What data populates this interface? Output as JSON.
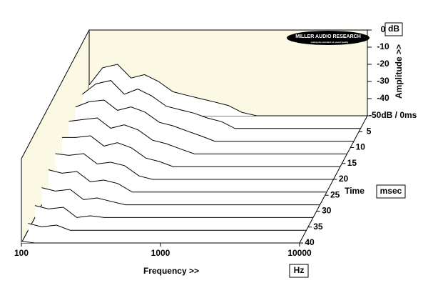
{
  "chart_data": {
    "type": "waterfall",
    "logo": "MILLER AUDIO RESEARCH",
    "logo_tagline": "setting the standard of sound quality",
    "x_label": "Frequency >>",
    "x_unit": "Hz",
    "y_label": "Amplitude >>",
    "y_unit": "dB",
    "z_label": "Time",
    "z_unit": "msec",
    "x_log": true,
    "xlim": [
      100,
      10000
    ],
    "xticks": [
      100,
      1000,
      10000
    ],
    "ylim": [
      -50,
      0
    ],
    "yticks": [
      0,
      -10,
      -20,
      -30,
      -40,
      {
        "value": -50,
        "label": "-50dB / 0ms"
      }
    ],
    "zlim": [
      0,
      40
    ],
    "zticks": [
      5,
      10,
      15,
      20,
      25,
      30,
      35,
      40
    ],
    "color": "#000000",
    "frequencies": [
      100,
      125,
      160,
      200,
      250,
      315,
      400,
      500,
      630,
      800,
      1000,
      1250,
      1600,
      10000
    ],
    "times": [
      0,
      4,
      8,
      12,
      16,
      20,
      24,
      28,
      32,
      36,
      40
    ],
    "values": [
      [
        -32,
        -22,
        -20,
        -28,
        -26,
        -30,
        -36,
        -38,
        -40,
        -42,
        -44,
        -48,
        -50,
        -50
      ],
      [
        -30,
        -24,
        -22,
        -30,
        -27,
        -31,
        -37,
        -39,
        -41,
        -44,
        -46,
        -50,
        -50,
        -50
      ],
      [
        -30,
        -27,
        -26,
        -32,
        -30,
        -33,
        -39,
        -41,
        -44,
        -47,
        -50,
        -50,
        -50,
        -50
      ],
      [
        -31,
        -30,
        -29,
        -35,
        -33,
        -36,
        -42,
        -44,
        -47,
        -50,
        -50,
        -50,
        -50,
        -50
      ],
      [
        -33,
        -33,
        -32,
        -38,
        -36,
        -39,
        -45,
        -47,
        -50,
        -50,
        -50,
        -50,
        -50,
        -50
      ],
      [
        -35,
        -36,
        -35,
        -41,
        -40,
        -42,
        -48,
        -50,
        -50,
        -50,
        -50,
        -50,
        -50,
        -50
      ],
      [
        -37,
        -39,
        -38,
        -44,
        -43,
        -45,
        -50,
        -50,
        -50,
        -50,
        -50,
        -50,
        -50,
        -50
      ],
      [
        -40,
        -42,
        -41,
        -47,
        -46,
        -48,
        -50,
        -50,
        -50,
        -50,
        -50,
        -50,
        -50,
        -50
      ],
      [
        -43,
        -45,
        -44,
        -50,
        -49,
        -50,
        -50,
        -50,
        -50,
        -50,
        -50,
        -50,
        -50,
        -50
      ],
      [
        -46,
        -48,
        -47,
        -50,
        -50,
        -50,
        -50,
        -50,
        -50,
        -50,
        -50,
        -50,
        -50,
        -50
      ],
      [
        -49,
        -50,
        -50,
        -50,
        -50,
        -50,
        -50,
        -50,
        -50,
        -50,
        -50,
        -50,
        -50,
        -50
      ]
    ]
  }
}
